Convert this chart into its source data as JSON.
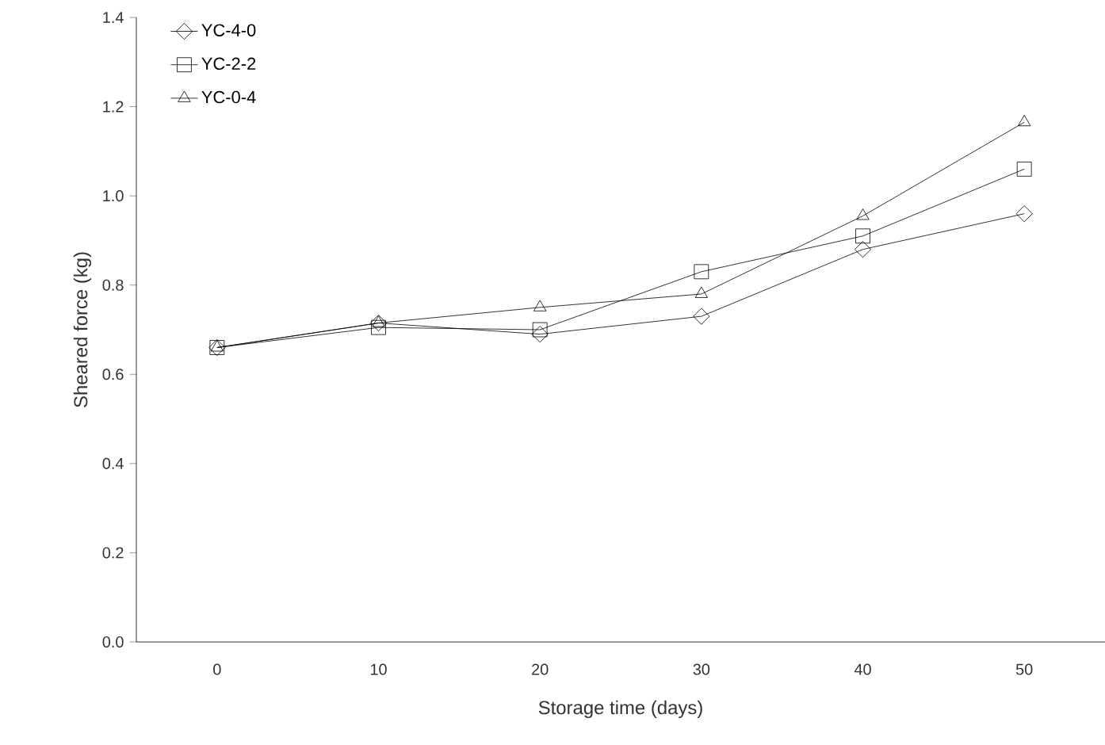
{
  "chart_data": {
    "type": "line",
    "xlabel": "Storage time (days)",
    "ylabel": "Sheared force (kg)",
    "categories": [
      "0",
      "10",
      "20",
      "30",
      "40",
      "50"
    ],
    "ylim": [
      0,
      1.4
    ],
    "yticks": [
      {
        "value": 0,
        "label": "0.0"
      },
      {
        "value": 0.2,
        "label": "0.2"
      },
      {
        "value": 0.4,
        "label": "0.4"
      },
      {
        "value": 0.6,
        "label": "0.6"
      },
      {
        "value": 0.8,
        "label": "0.8"
      },
      {
        "value": 1.0,
        "label": "1.0"
      },
      {
        "value": 1.2,
        "label": "1.2"
      },
      {
        "value": 1.4,
        "label": "1.4"
      }
    ],
    "grid": false,
    "legend": "top left",
    "line_style": "solid",
    "series": [
      {
        "name": "YC-4-0",
        "color": "#000000",
        "marker": "diamond",
        "values": [
          0.66,
          0.715,
          0.69,
          0.73,
          0.88,
          0.96
        ]
      },
      {
        "name": "YC-2-2",
        "color": "#000000",
        "marker": "square",
        "values": [
          0.66,
          0.705,
          0.7,
          0.83,
          0.91,
          1.06
        ]
      },
      {
        "name": "YC-0-4",
        "color": "#000000",
        "marker": "triangle",
        "values": [
          0.66,
          0.715,
          0.75,
          0.78,
          0.955,
          1.165
        ]
      }
    ]
  }
}
